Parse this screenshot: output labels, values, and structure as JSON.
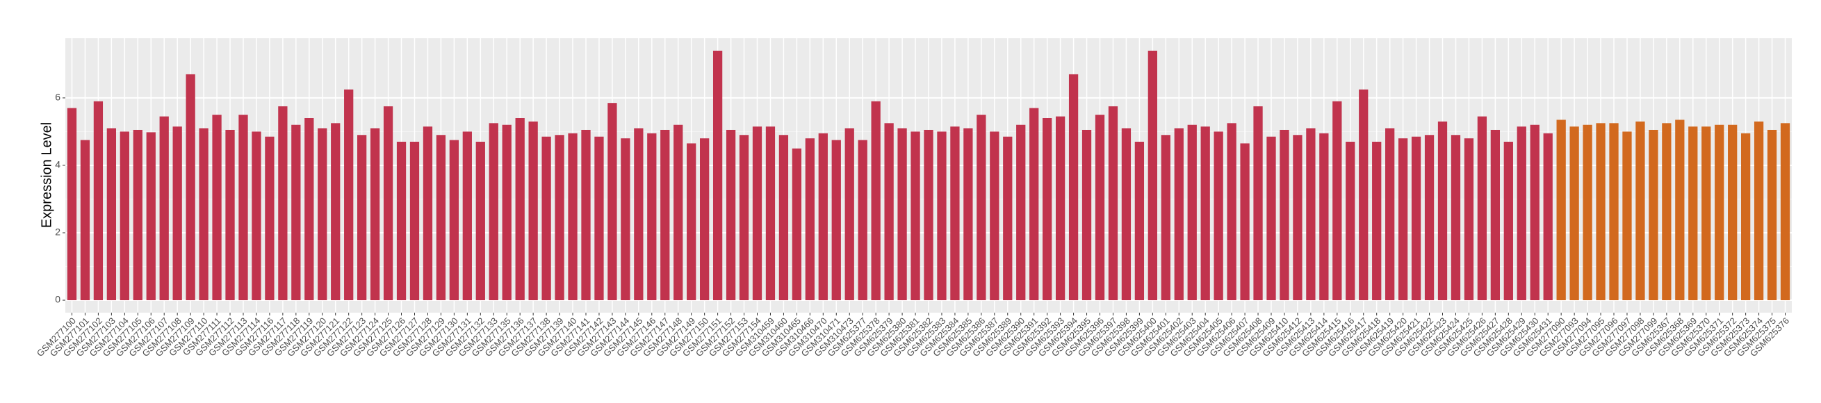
{
  "chart_data": {
    "type": "bar",
    "y_label": "Expression Level",
    "categories": [
      "GSM277100",
      "GSM277101",
      "GSM277102",
      "GSM277103",
      "GSM277104",
      "GSM277105",
      "GSM277106",
      "GSM277107",
      "GSM277108",
      "GSM277109",
      "GSM277110",
      "GSM277111",
      "GSM277112",
      "GSM277113",
      "GSM277114",
      "GSM277116",
      "GSM277117",
      "GSM277118",
      "GSM277119",
      "GSM277120",
      "GSM277121",
      "GSM277122",
      "GSM277123",
      "GSM277124",
      "GSM277125",
      "GSM277126",
      "GSM277127",
      "GSM277128",
      "GSM277129",
      "GSM277130",
      "GSM277131",
      "GSM277132",
      "GSM277133",
      "GSM277135",
      "GSM277136",
      "GSM277137",
      "GSM277138",
      "GSM277139",
      "GSM277140",
      "GSM277141",
      "GSM277142",
      "GSM277143",
      "GSM277144",
      "GSM277145",
      "GSM277146",
      "GSM277147",
      "GSM277148",
      "GSM277149",
      "GSM277150",
      "GSM277151",
      "GSM277152",
      "GSM277153",
      "GSM277154",
      "GSM310459",
      "GSM310460",
      "GSM310465",
      "GSM310466",
      "GSM310470",
      "GSM310471",
      "GSM310473",
      "GSM625377",
      "GSM625378",
      "GSM625379",
      "GSM625380",
      "GSM625381",
      "GSM625382",
      "GSM625383",
      "GSM625384",
      "GSM625385",
      "GSM625386",
      "GSM625387",
      "GSM625389",
      "GSM625390",
      "GSM625391",
      "GSM625392",
      "GSM625393",
      "GSM625394",
      "GSM625395",
      "GSM625396",
      "GSM625397",
      "GSM625398",
      "GSM625399",
      "GSM625400",
      "GSM625401",
      "GSM625402",
      "GSM625403",
      "GSM625404",
      "GSM625405",
      "GSM625406",
      "GSM625407",
      "GSM625408",
      "GSM625409",
      "GSM625410",
      "GSM625412",
      "GSM625413",
      "GSM625414",
      "GSM625415",
      "GSM625416",
      "GSM625417",
      "GSM625418",
      "GSM625419",
      "GSM625420",
      "GSM625421",
      "GSM625422",
      "GSM625423",
      "GSM625424",
      "GSM625425",
      "GSM625426",
      "GSM625427",
      "GSM625428",
      "GSM625429",
      "GSM625430",
      "GSM625431",
      "GSM277090",
      "GSM277093",
      "GSM277094",
      "GSM277095",
      "GSM277096",
      "GSM277097",
      "GSM277098",
      "GSM277099",
      "GSM625367",
      "GSM625368",
      "GSM625369",
      "GSM625370",
      "GSM625371",
      "GSM625372",
      "GSM625373",
      "GSM625374",
      "GSM625375",
      "GSM625376"
    ],
    "values": [
      5.7,
      4.75,
      5.9,
      5.1,
      5.0,
      5.05,
      4.98,
      5.45,
      5.15,
      6.7,
      5.1,
      5.5,
      5.05,
      5.5,
      5.0,
      4.85,
      5.75,
      5.2,
      5.4,
      5.1,
      5.25,
      6.25,
      4.9,
      5.1,
      5.75,
      4.7,
      4.7,
      5.15,
      4.9,
      4.75,
      5.0,
      4.7,
      5.25,
      5.2,
      5.4,
      5.3,
      4.85,
      4.9,
      4.95,
      5.05,
      4.85,
      5.85,
      4.8,
      5.1,
      4.95,
      5.05,
      5.2,
      4.65,
      4.8,
      7.4,
      5.05,
      4.9,
      5.15,
      5.15,
      4.9,
      4.5,
      4.8,
      4.95,
      4.75,
      5.1,
      4.75,
      5.9,
      5.25,
      5.1,
      5.0,
      5.05,
      5.0,
      5.15,
      5.1,
      5.5,
      5.0,
      4.85,
      5.2,
      5.7,
      5.4,
      5.45,
      6.7,
      5.05,
      5.5,
      5.75,
      5.1,
      4.7,
      7.4,
      4.9,
      5.1,
      5.2,
      5.15,
      5.0,
      5.25,
      4.65,
      5.75,
      4.85,
      5.05,
      4.9,
      5.1,
      4.95,
      5.9,
      4.7,
      6.25,
      4.7,
      5.1,
      4.8,
      4.85,
      4.9,
      5.3,
      4.9,
      4.8,
      5.45,
      5.05,
      4.7,
      5.15,
      5.2,
      4.95,
      5.35,
      5.15,
      5.2,
      5.25,
      5.25,
      5.0,
      5.3,
      5.05,
      5.25,
      5.35,
      5.15,
      5.15,
      5.2,
      5.2,
      4.95,
      5.3,
      5.05,
      5.25
    ],
    "colors": [
      "#c1334d",
      "#c1334d",
      "#c1334d",
      "#c1334d",
      "#c1334d",
      "#c1334d",
      "#c1334d",
      "#c1334d",
      "#c1334d",
      "#c1334d",
      "#c1334d",
      "#c1334d",
      "#c1334d",
      "#c1334d",
      "#c1334d",
      "#c1334d",
      "#c1334d",
      "#c1334d",
      "#c1334d",
      "#c1334d",
      "#c1334d",
      "#c1334d",
      "#c1334d",
      "#c1334d",
      "#c1334d",
      "#c1334d",
      "#c1334d",
      "#c1334d",
      "#c1334d",
      "#c1334d",
      "#c1334d",
      "#c1334d",
      "#c1334d",
      "#c1334d",
      "#c1334d",
      "#c1334d",
      "#c1334d",
      "#c1334d",
      "#c1334d",
      "#c1334d",
      "#c1334d",
      "#c1334d",
      "#c1334d",
      "#c1334d",
      "#c1334d",
      "#c1334d",
      "#c1334d",
      "#c1334d",
      "#c1334d",
      "#c1334d",
      "#c1334d",
      "#c1334d",
      "#c1334d",
      "#c1334d",
      "#c1334d",
      "#c1334d",
      "#c1334d",
      "#c1334d",
      "#c1334d",
      "#c1334d",
      "#c1334d",
      "#c1334d",
      "#c1334d",
      "#c1334d",
      "#c1334d",
      "#c1334d",
      "#c1334d",
      "#c1334d",
      "#c1334d",
      "#c1334d",
      "#c1334d",
      "#c1334d",
      "#c1334d",
      "#c1334d",
      "#c1334d",
      "#c1334d",
      "#c1334d",
      "#c1334d",
      "#c1334d",
      "#c1334d",
      "#c1334d",
      "#c1334d",
      "#c1334d",
      "#c1334d",
      "#c1334d",
      "#c1334d",
      "#c1334d",
      "#c1334d",
      "#c1334d",
      "#c1334d",
      "#c1334d",
      "#c1334d",
      "#c1334d",
      "#c1334d",
      "#c1334d",
      "#c1334d",
      "#c1334d",
      "#c1334d",
      "#c1334d",
      "#c1334d",
      "#c1334d",
      "#c1334d",
      "#c1334d",
      "#c1334d",
      "#c1334d",
      "#c1334d",
      "#c1334d",
      "#c1334d",
      "#c1334d",
      "#c1334d",
      "#c1334d",
      "#c1334d",
      "#c1334d",
      "#d2691e",
      "#d2691e",
      "#d2691e",
      "#d2691e",
      "#d2691e",
      "#d2691e",
      "#d2691e",
      "#d2691e",
      "#d2691e",
      "#d2691e",
      "#d2691e",
      "#d2691e",
      "#d2691e",
      "#d2691e",
      "#d2691e",
      "#d2691e",
      "#d2691e",
      "#d2691e"
    ],
    "ylim": [
      -0.37,
      7.77
    ],
    "yticks": [
      0,
      2,
      4,
      6
    ],
    "grid": true
  }
}
